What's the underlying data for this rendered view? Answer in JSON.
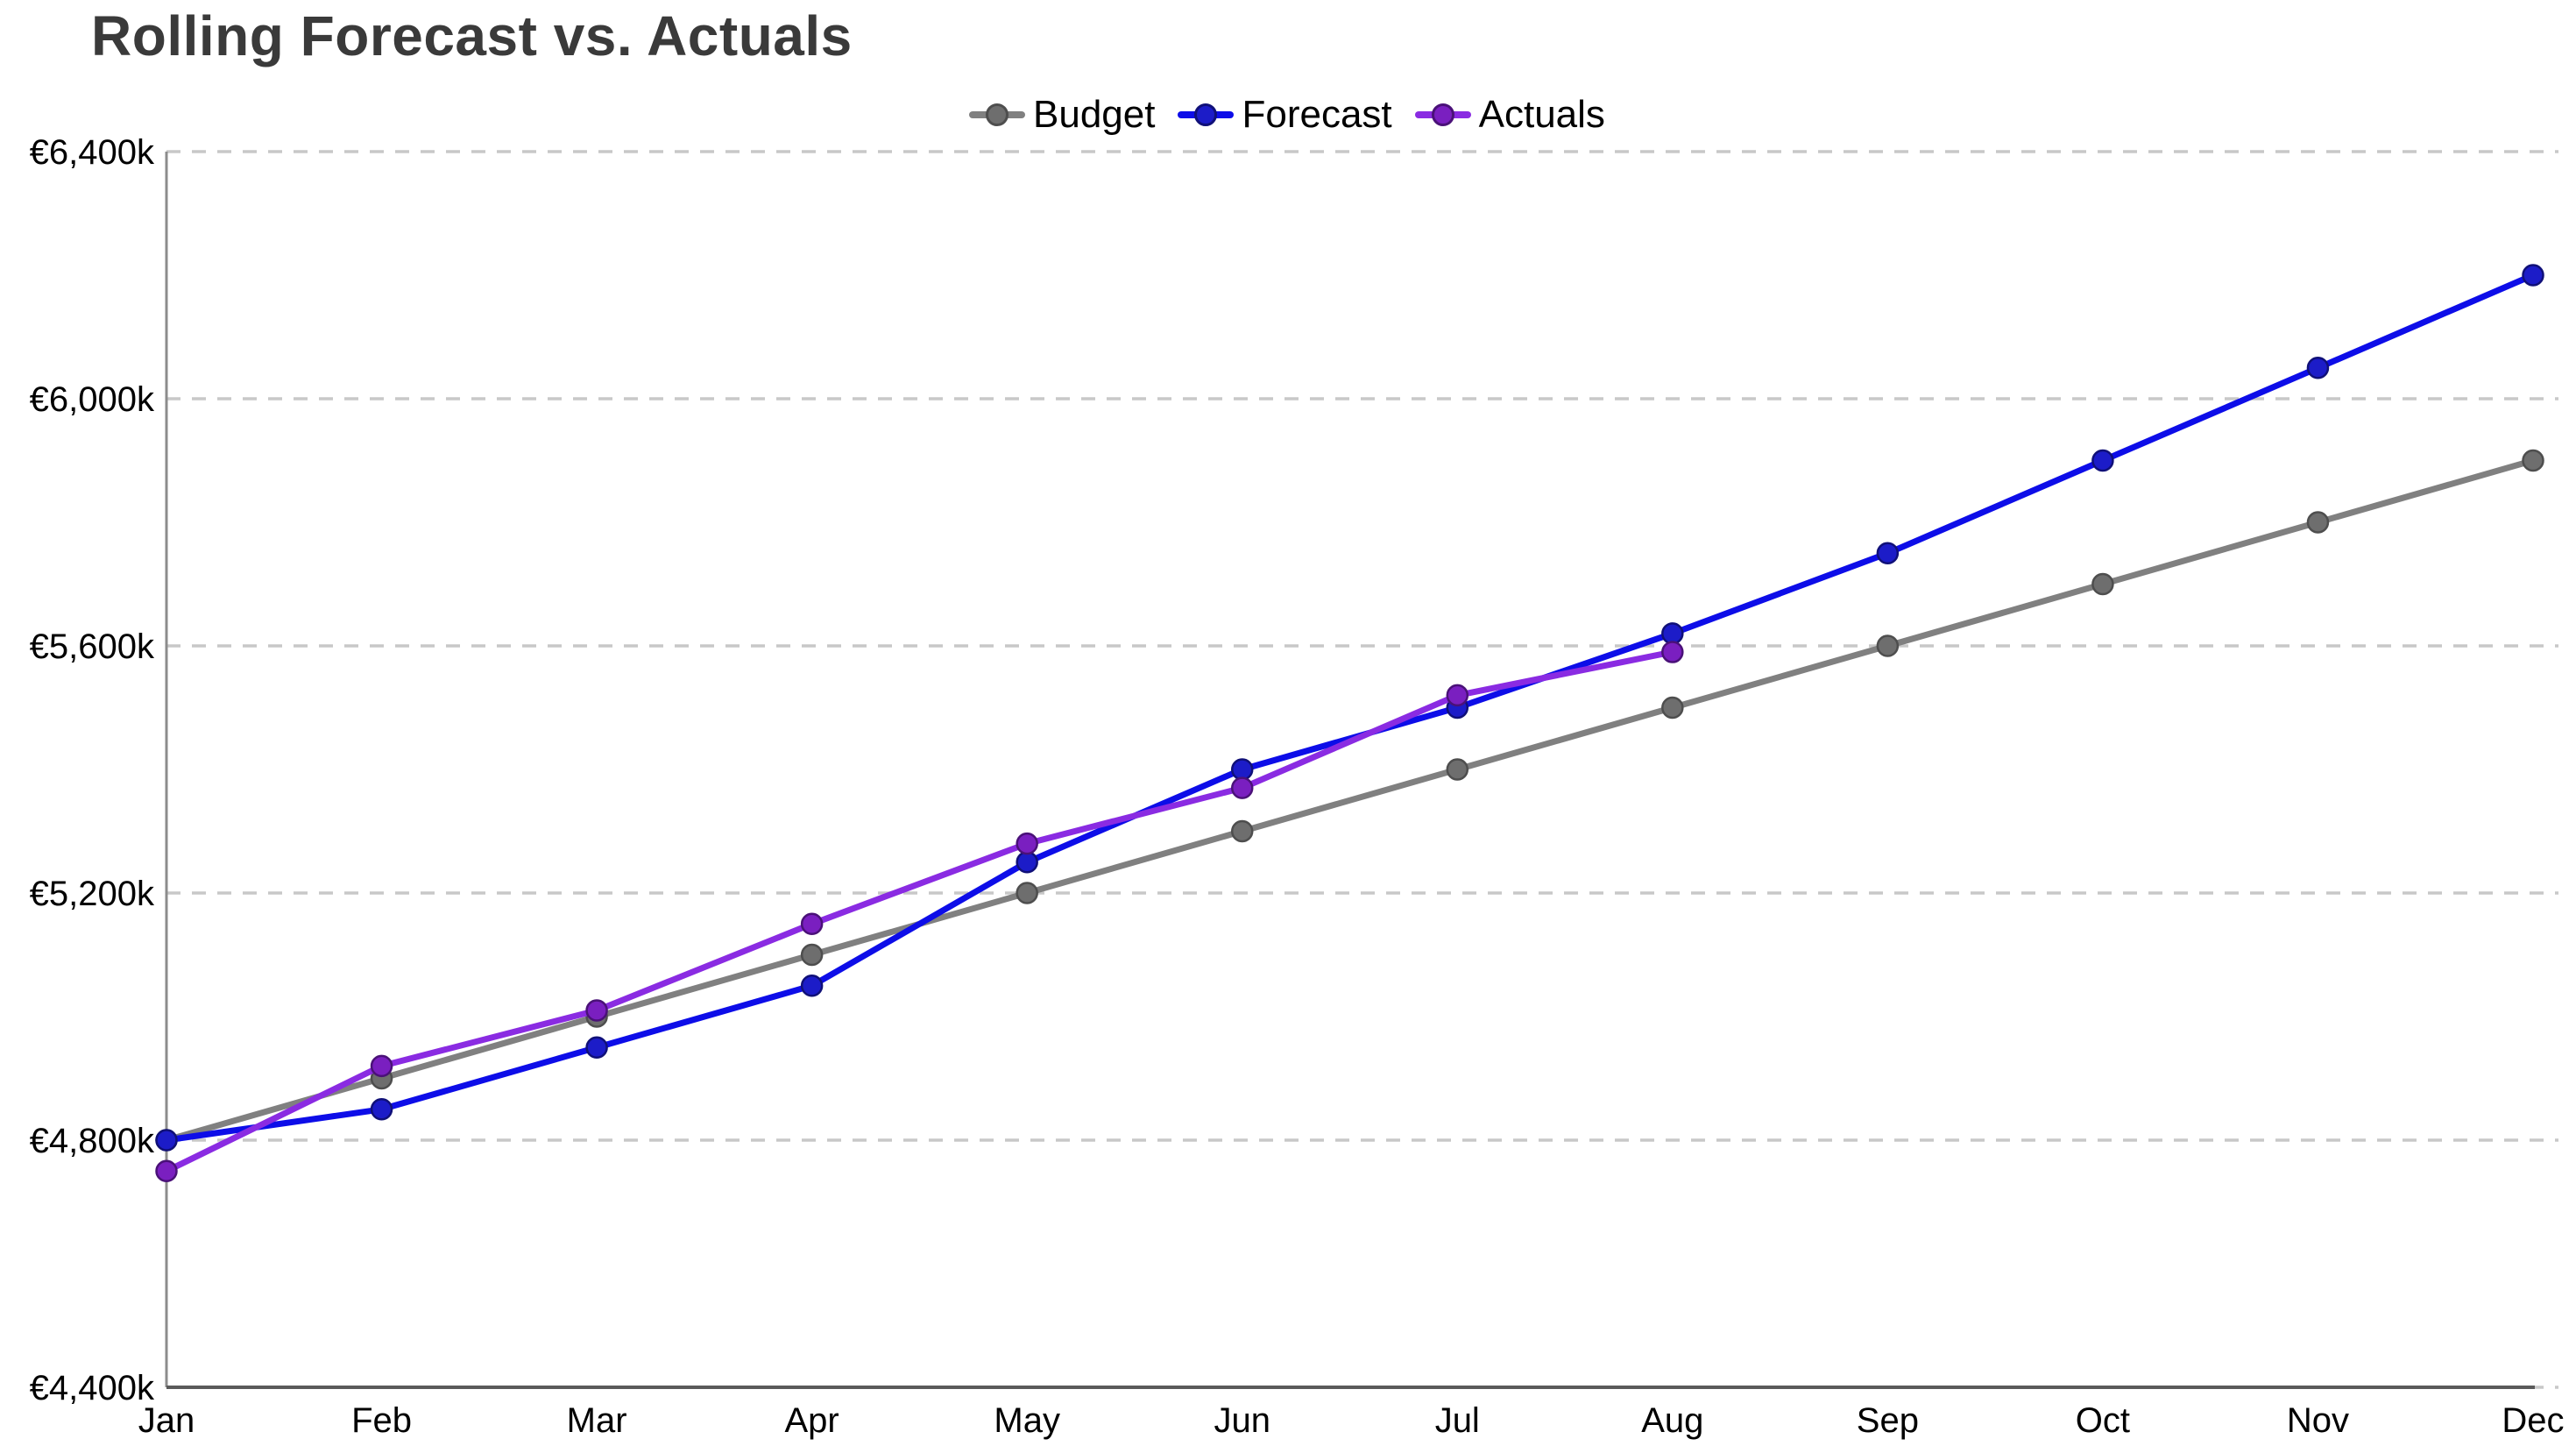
{
  "title": "Rolling Forecast vs. Actuals",
  "colors": {
    "title_text": "#3A3A3A",
    "axis_x": "#5A5A5A",
    "axis_y": "#8C8C8C",
    "grid": "#C8C8C8",
    "tick_text": "#000000",
    "legend_text": "#000000",
    "background": "#FFFFFF"
  },
  "chart_data": {
    "type": "line",
    "title": "Rolling Forecast vs. Actuals",
    "categories": [
      "Jan",
      "Feb",
      "Mar",
      "Apr",
      "May",
      "Jun",
      "Jul",
      "Aug",
      "Sep",
      "Oct",
      "Nov",
      "Dec"
    ],
    "series": [
      {
        "name": "Budget",
        "color": "#808080",
        "marker_fill": "#6E6E6E",
        "marker_edge": "#4E4E4E",
        "values": [
          4800,
          4900,
          5000,
          5100,
          5200,
          5300,
          5400,
          5500,
          5600,
          5700,
          5800,
          5900
        ]
      },
      {
        "name": "Forecast",
        "color": "#0D0DE8",
        "marker_fill": "#1C1CC8",
        "marker_edge": "#101078",
        "values": [
          4800,
          4850,
          4950,
          5050,
          5250,
          5400,
          5500,
          5620,
          5750,
          5900,
          6050,
          6200
        ]
      },
      {
        "name": "Actuals",
        "color": "#8A2BE2",
        "marker_fill": "#7A1FC0",
        "marker_edge": "#4A1178",
        "values": [
          4750,
          4920,
          5010,
          5150,
          5280,
          5370,
          5520,
          5590,
          null,
          null,
          null,
          null
        ]
      }
    ],
    "ylim": [
      4400,
      6400
    ],
    "yticks": [
      6400,
      6000,
      5600,
      5200,
      4800,
      4400
    ],
    "ytick_labels": [
      "€6,400k",
      "€6,000k",
      "€5,600k",
      "€5,200k",
      "€4,800k",
      "€4,400k"
    ],
    "xlabel": "",
    "ylabel": "",
    "grid": "horizontal-dashed",
    "legend_position": "top-center"
  }
}
